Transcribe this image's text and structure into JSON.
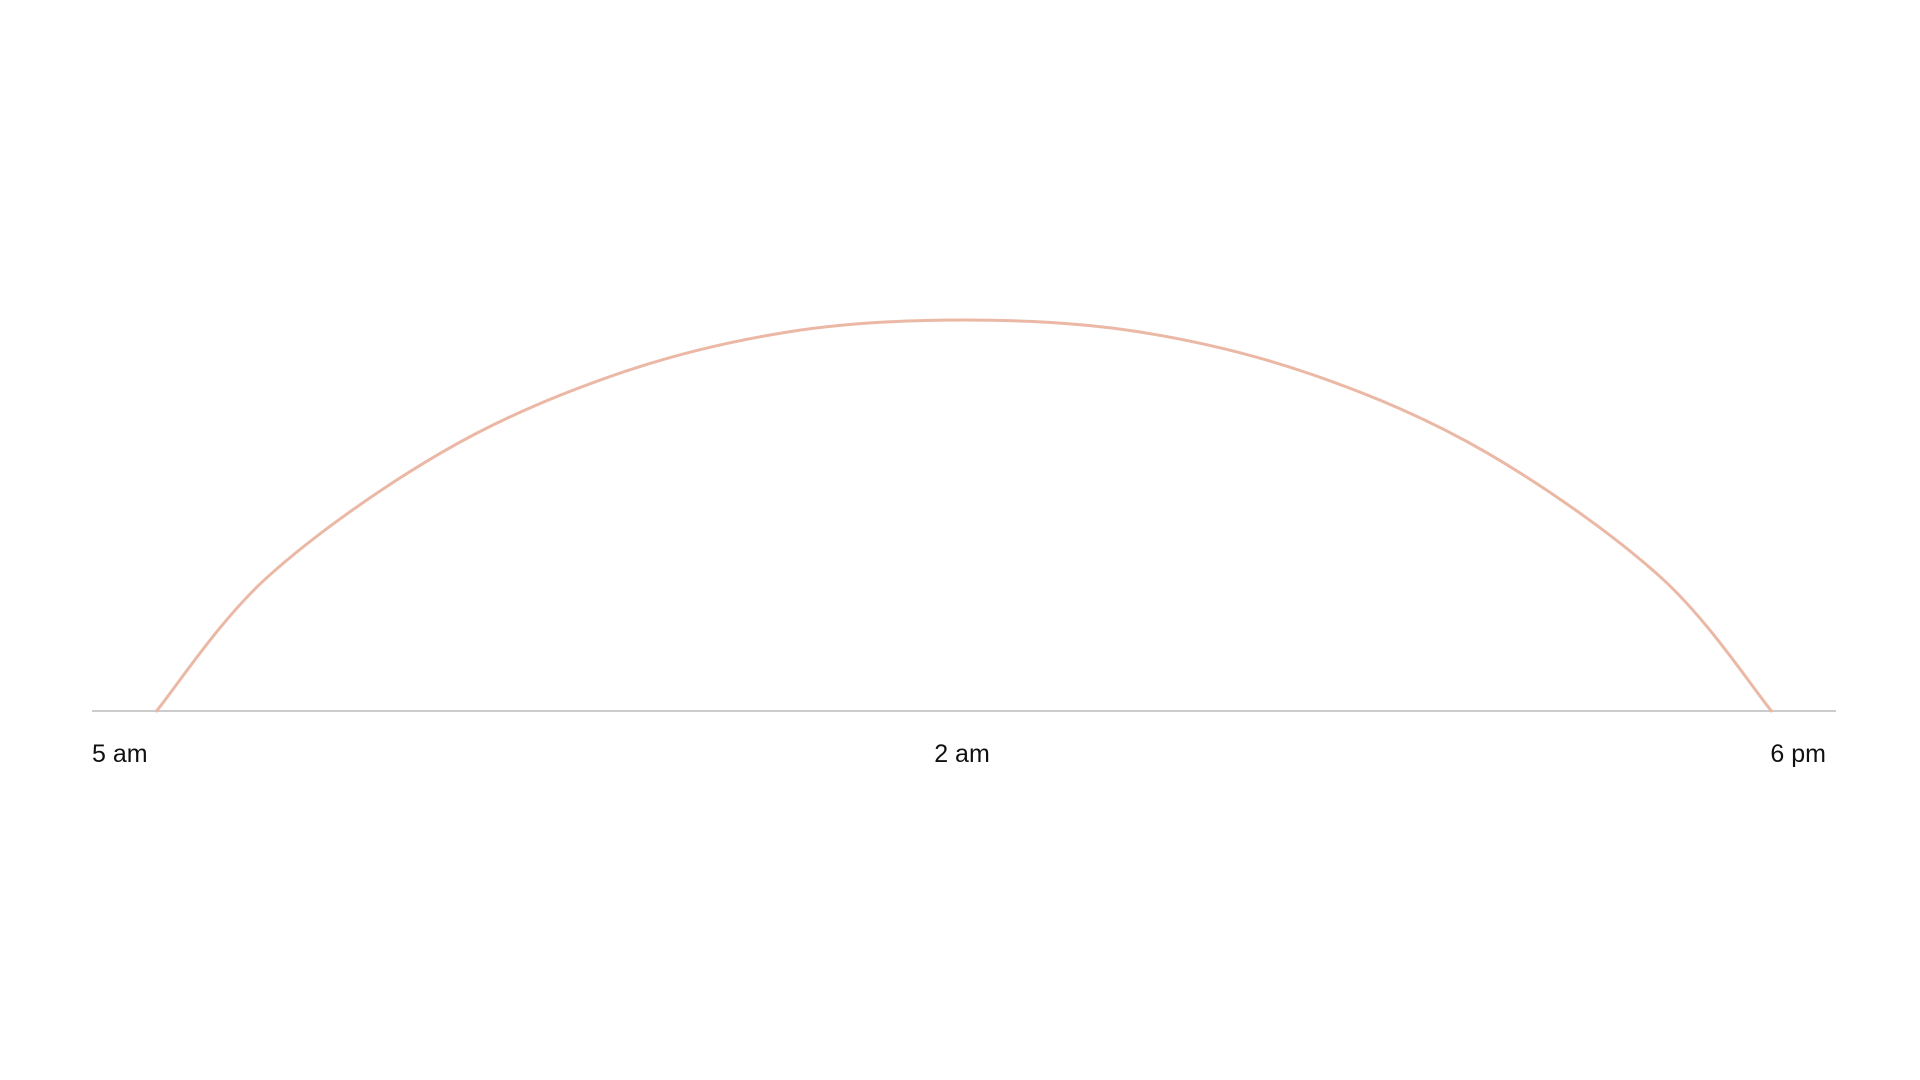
{
  "chart_data": {
    "type": "line",
    "title": "",
    "xlabel": "",
    "ylabel": "",
    "x_tick_labels": [
      "5 am",
      "2 am",
      "6 pm"
    ],
    "series": [
      {
        "color": "#ebb8a6",
        "points": [
          {
            "x": 0.037,
            "y": 0.0
          },
          {
            "x": 0.1,
            "y": 0.34
          },
          {
            "x": 0.2,
            "y": 0.66
          },
          {
            "x": 0.3,
            "y": 0.86
          },
          {
            "x": 0.4,
            "y": 0.97
          },
          {
            "x": 0.5,
            "y": 1.0
          },
          {
            "x": 0.6,
            "y": 0.97
          },
          {
            "x": 0.7,
            "y": 0.86
          },
          {
            "x": 0.8,
            "y": 0.66
          },
          {
            "x": 0.9,
            "y": 0.34
          },
          {
            "x": 0.963,
            "y": 0.0
          }
        ]
      }
    ],
    "xlim": [
      0,
      1
    ],
    "ylim": [
      0,
      1
    ],
    "grid": false,
    "legend": "none",
    "axis_color": "#cccccc",
    "text_color": "#111111"
  }
}
